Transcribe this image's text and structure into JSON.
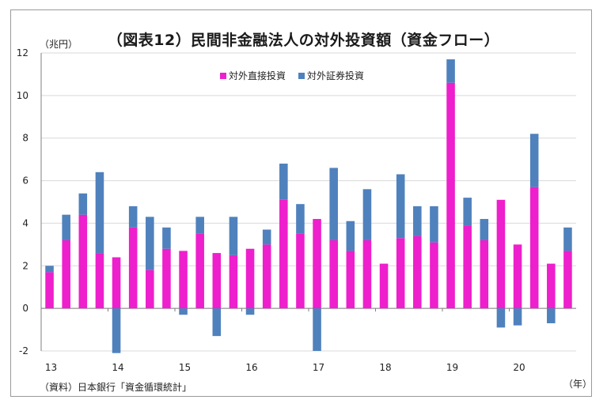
{
  "title": "（図表12）民間非金融法人の対外投資額（資金フロー）",
  "y_unit": "（兆円）",
  "x_unit": "（年）",
  "source": "（資料）日本銀行「資金循環統計」",
  "colors": {
    "direct": "#ee1fcc",
    "portfolio": "#4f81bd",
    "grid": "#d9d9d9",
    "axis": "#808080"
  },
  "chart_data": {
    "type": "bar",
    "stacked": true,
    "title": "（図表12）民間非金融法人の対外投資額（資金フロー）",
    "ylabel": "（兆円）",
    "xlabel": "（年）",
    "ylim": [
      -2,
      12
    ],
    "yticks": [
      "-2",
      "0",
      "2",
      "4",
      "6",
      "8",
      "10",
      "12"
    ],
    "year_labels": [
      "13",
      "14",
      "15",
      "16",
      "17",
      "18",
      "19",
      "20"
    ],
    "categories": [
      "13Q1",
      "13Q2",
      "13Q3",
      "13Q4",
      "14Q1",
      "14Q2",
      "14Q3",
      "14Q4",
      "15Q1",
      "15Q2",
      "15Q3",
      "15Q4",
      "16Q1",
      "16Q2",
      "16Q3",
      "16Q4",
      "17Q1",
      "17Q2",
      "17Q3",
      "17Q4",
      "18Q1",
      "18Q2",
      "18Q3",
      "18Q4",
      "19Q1",
      "19Q2",
      "19Q3",
      "19Q4",
      "20Q1",
      "20Q2",
      "20Q3",
      "20Q4"
    ],
    "legend_position": "top-center",
    "grid": true,
    "series": [
      {
        "name": "対外直接投資",
        "color": "#ee1fcc",
        "values": [
          1.7,
          3.2,
          4.4,
          2.6,
          2.4,
          3.8,
          1.8,
          2.8,
          2.7,
          3.5,
          2.6,
          2.5,
          2.8,
          3.0,
          5.1,
          3.5,
          4.2,
          3.2,
          2.7,
          3.2,
          2.1,
          3.3,
          3.4,
          3.1,
          10.6,
          3.9,
          3.2,
          5.1,
          3.0,
          5.7,
          2.1,
          2.7
        ]
      },
      {
        "name": "対外証券投資",
        "color": "#4f81bd",
        "values": [
          0.3,
          1.2,
          1.0,
          3.8,
          -2.1,
          1.0,
          2.5,
          1.0,
          -0.3,
          0.8,
          -1.3,
          1.8,
          -0.3,
          0.7,
          1.7,
          1.4,
          -2.0,
          3.4,
          1.4,
          2.4,
          0.0,
          3.0,
          1.4,
          1.7,
          1.1,
          1.3,
          1.0,
          -0.9,
          -0.8,
          2.5,
          -0.7,
          1.1
        ]
      }
    ]
  }
}
